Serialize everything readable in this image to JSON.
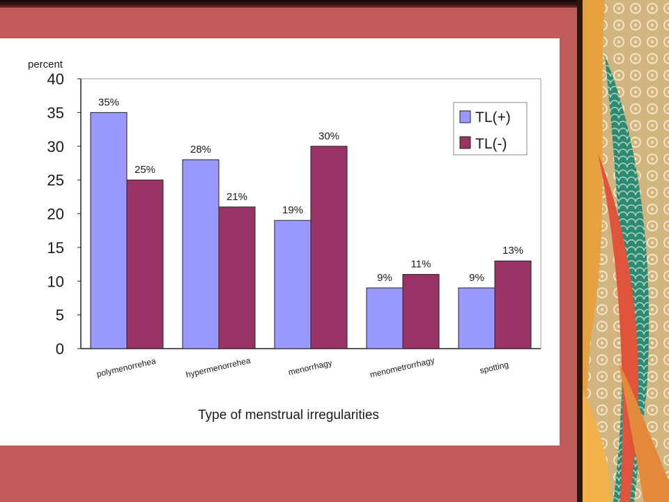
{
  "colors": {
    "slide_background": "#c15b59",
    "series_1": "#9999ff",
    "series_2": "#993366"
  },
  "chart_data": {
    "type": "bar",
    "ylabel": "percent",
    "xlabel": "Type of menstrual irregularities",
    "categories": [
      "polymenorrehea",
      "hypermenorrehea",
      "menorrhagy",
      "menometrorrhagy",
      "spotting"
    ],
    "series": [
      {
        "name": "TL(+)",
        "values": [
          35,
          28,
          19,
          9,
          9
        ],
        "labels": [
          "35%",
          "28%",
          "19%",
          "9%",
          "9%"
        ],
        "color": "#9999ff"
      },
      {
        "name": "TL(-)",
        "values": [
          25,
          21,
          30,
          11,
          13
        ],
        "labels": [
          "25%",
          "21%",
          "30%",
          "11%",
          "13%"
        ],
        "color": "#993366"
      }
    ],
    "ylim": [
      0,
      40
    ],
    "yticks": [
      "0",
      "5",
      "10",
      "15",
      "20",
      "25",
      "30",
      "35",
      "40"
    ],
    "legend": "top-right",
    "grid": false
  }
}
